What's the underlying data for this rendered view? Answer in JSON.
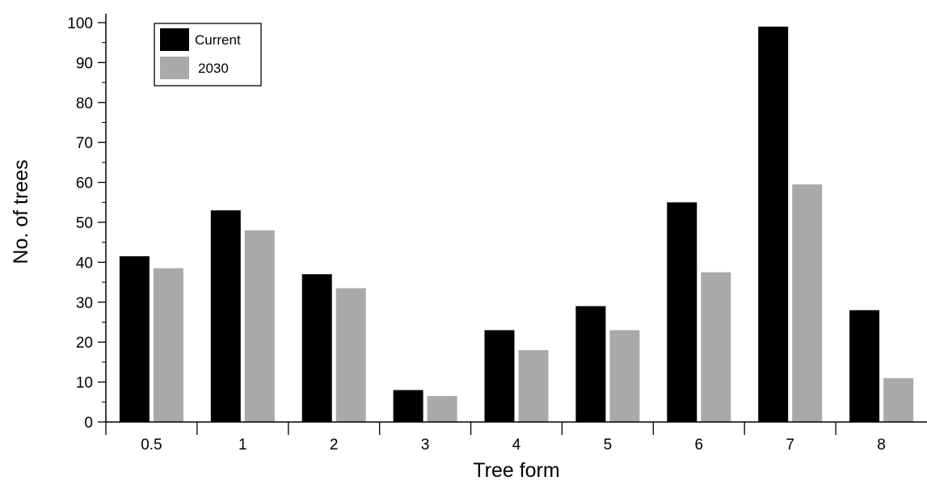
{
  "chart_data": {
    "type": "bar",
    "title": "",
    "xlabel": "Tree form",
    "ylabel": "No. of trees",
    "categories": [
      "0.5",
      "1",
      "2",
      "3",
      "4",
      "5",
      "6",
      "7",
      "8"
    ],
    "series": [
      {
        "name": "Current",
        "color": "#000000",
        "values": [
          41.5,
          53,
          37,
          8,
          23,
          29,
          55,
          99,
          28
        ]
      },
      {
        "name": "2030",
        "color": "#a9a9a9",
        "values": [
          38.5,
          48,
          33.5,
          6.5,
          18,
          23,
          37.5,
          59.5,
          11
        ]
      }
    ],
    "ylim": [
      0,
      100
    ],
    "yticks": [
      0,
      10,
      20,
      30,
      40,
      50,
      60,
      70,
      80,
      90,
      100
    ],
    "grid": false,
    "legend_position": "top-left"
  }
}
